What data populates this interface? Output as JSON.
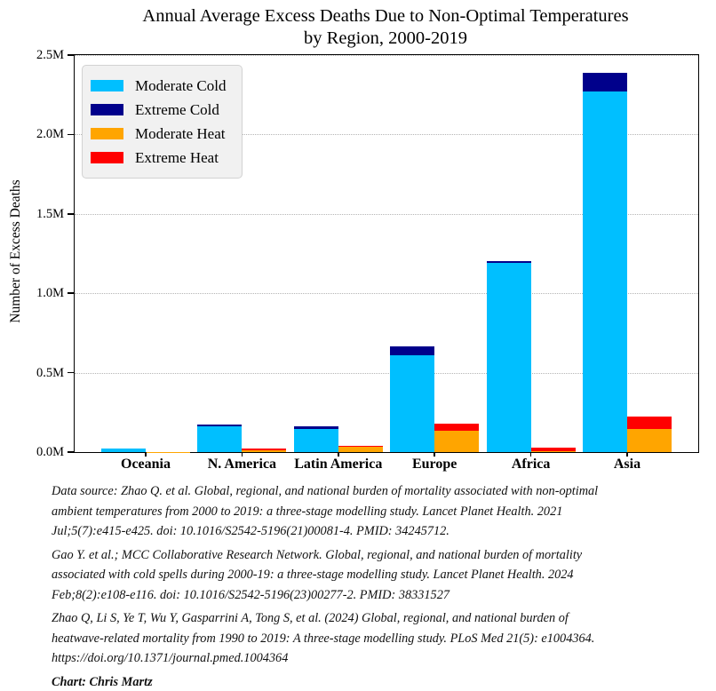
{
  "title": {
    "line1": "Annual Average Excess Deaths Due to Non-Optimal Temperatures",
    "line2": "by Region, 2000-2019"
  },
  "chart_data": {
    "type": "bar",
    "stacked": true,
    "grouping": "two stacked bars per category: cold stack on left of tick, heat stack on right",
    "title": "Annual Average Excess Deaths Due to Non-Optimal Temperatures by Region, 2000-2019",
    "categories": [
      "Oceania",
      "N. America",
      "Latin America",
      "Europe",
      "Africa",
      "Asia"
    ],
    "unit": "millions of excess deaths per year",
    "series": [
      {
        "name": "Moderate Cold",
        "stack": "cold",
        "color": "#00bfff",
        "values": [
          0.02,
          0.165,
          0.148,
          0.607,
          1.19,
          2.27
        ]
      },
      {
        "name": "Extreme Cold",
        "stack": "cold",
        "color": "#00008b",
        "values": [
          0.001,
          0.011,
          0.017,
          0.056,
          0.011,
          0.12
        ]
      },
      {
        "name": "Moderate Heat",
        "stack": "heat",
        "color": "#ffa500",
        "values": [
          0.001,
          0.013,
          0.036,
          0.135,
          0.008,
          0.145
        ]
      },
      {
        "name": "Extreme Heat",
        "stack": "heat",
        "color": "#ff0000",
        "values": [
          0.0005,
          0.01,
          0.003,
          0.045,
          0.022,
          0.08
        ]
      }
    ],
    "xlabel": "",
    "ylabel": "Number of Excess Deaths",
    "ylim": [
      0,
      2.5
    ],
    "yticks": [
      {
        "value": 0.0,
        "label": "0.0M"
      },
      {
        "value": 0.5,
        "label": "0.5M"
      },
      {
        "value": 1.0,
        "label": "1.0M"
      },
      {
        "value": 1.5,
        "label": "1.5M"
      },
      {
        "value": 2.0,
        "label": "2.0M"
      },
      {
        "value": 2.5,
        "label": "2.5M"
      }
    ],
    "grid": "horizontal dotted gray lines at each y tick",
    "legend_position": "upper left"
  },
  "footer": {
    "citations": [
      "Data source: Zhao Q. et al. Global, regional, and national burden of mortality associated with non-optimal\nambient temperatures from 2000 to 2019: a three-stage modelling study. Lancet Planet Health. 2021\nJul;5(7):e415-e425. doi: 10.1016/S2542-5196(21)00081-4. PMID: 34245712.",
      "Gao Y. et al.; MCC Collaborative Research Network. Global, regional, and national burden of mortality\nassociated with cold spells during 2000-19: a three-stage modelling study. Lancet Planet Health. 2024\nFeb;8(2):e108-e116. doi: 10.1016/S2542-5196(23)00277-2. PMID: 38331527",
      "Zhao Q, Li S, Ye T, Wu Y, Gasparrini A, Tong S, et al. (2024) Global, regional, and national burden of\nheatwave-related mortality from 1990 to 2019: A three-stage modelling study. PLoS Med 21(5): e1004364.\nhttps://doi.org/10.1371/journal.pmed.1004364"
    ],
    "credit": "Chart: Chris Martz"
  }
}
